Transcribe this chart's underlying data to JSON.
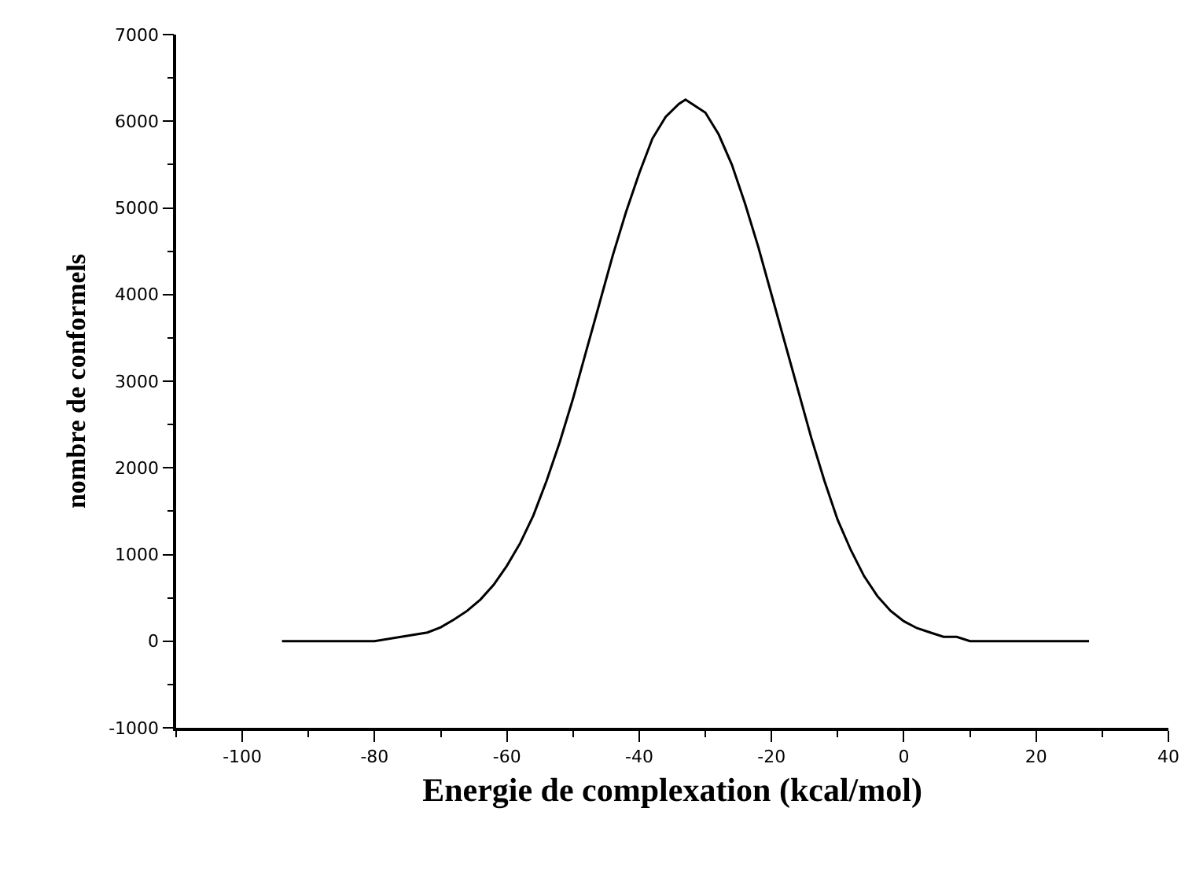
{
  "chart_data": {
    "type": "line",
    "xlabel": "Energie de complexation (kcal/mol)",
    "ylabel": "nombre de conformels",
    "xlim": [
      -110,
      40
    ],
    "xticks": [
      -100,
      -80,
      -60,
      -40,
      -20,
      0,
      20,
      40
    ],
    "ylim": [
      -1000,
      7000
    ],
    "yticks": [
      -1000,
      0,
      1000,
      2000,
      3000,
      4000,
      5000,
      6000,
      7000
    ],
    "grid": false,
    "marker": "none",
    "line_style": "solid",
    "series": [
      {
        "color": "#000000",
        "x": [
          -94,
          -90,
          -85,
          -80,
          -76,
          -72,
          -70,
          -68,
          -66,
          -64,
          -62,
          -60,
          -58,
          -56,
          -54,
          -52,
          -50,
          -48,
          -46,
          -44,
          -42,
          -40,
          -38,
          -36,
          -34,
          -33,
          -32,
          -30,
          -28,
          -26,
          -24,
          -22,
          -20,
          -18,
          -16,
          -14,
          -12,
          -10,
          -8,
          -6,
          -4,
          -2,
          0,
          2,
          4,
          6,
          8,
          10,
          14,
          18,
          22,
          28
        ],
        "values": [
          0,
          0,
          0,
          0,
          50,
          100,
          160,
          250,
          350,
          480,
          650,
          870,
          1130,
          1450,
          1850,
          2300,
          2800,
          3350,
          3900,
          4450,
          4950,
          5400,
          5800,
          6050,
          6200,
          6250,
          6200,
          6100,
          5850,
          5500,
          5050,
          4550,
          4000,
          3450,
          2900,
          2350,
          1850,
          1400,
          1050,
          750,
          520,
          350,
          230,
          150,
          100,
          50,
          50,
          0,
          0,
          0,
          0,
          0
        ]
      }
    ]
  }
}
